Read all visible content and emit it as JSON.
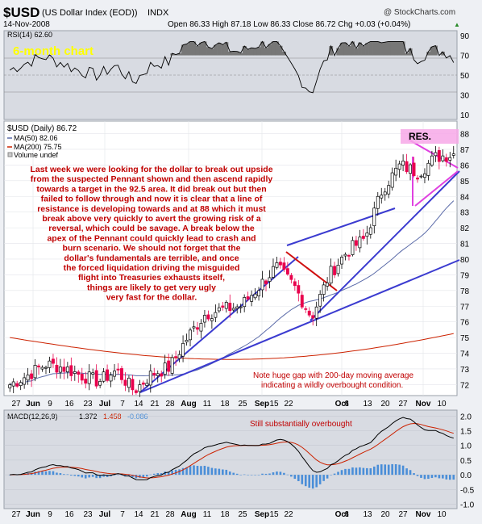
{
  "header": {
    "symbol": "$USD",
    "name": "(US Dollar Index (EOD))",
    "exchange": "INDX",
    "date": "14-Nov-2008",
    "copyright": "@ StockCharts.com",
    "ohlc": "Open 86.33  High 87.18  Low 86.33  Close 86.72  Chg +0.03 (+0.04%)",
    "ohlc_arrow": "▲"
  },
  "rsi_panel": {
    "label": "RSI(14) 62.60",
    "title": "6-month chart",
    "yticks": [
      "90",
      "70",
      "50",
      "30",
      "10"
    ]
  },
  "price_panel": {
    "legend": {
      "price": "$USD (Daily) 86.72",
      "ma50": "MA(50) 82.06",
      "ma200": "MA(200) 75.75",
      "volume": "Volume undef"
    },
    "commentary": [
      "Last week we were looking for the dollar to break out upside",
      "from the suspected Pennant shown and then ascend rapidly",
      "towards a target in the 92.5 area. It did break out but then",
      "failed to follow through and now it is clear that a line of",
      "resistance is developing towards and at 88 which it must",
      "break above very quickly to avert the growing risk of a",
      "reversal, which could be savage. A break below the",
      "apex of the Pennant could quickly lead to crash and",
      "burn scenario. We should not forget that the",
      "dollar's fundamentals are terrible, and once",
      "the forced liquidation driving the misguided",
      "flight into Treasuries exhausts itself,",
      "things are likely to get very ugly",
      "very fast for the dollar."
    ],
    "res_label": "RES.",
    "gap_note": [
      "Note huge gap with 200-day moving average",
      "indicating a wildly overbought condition."
    ],
    "yticks": [
      "88",
      "87",
      "86",
      "85",
      "84",
      "83",
      "82",
      "81",
      "80",
      "79",
      "78",
      "77",
      "76",
      "75",
      "74",
      "73",
      "72"
    ]
  },
  "macd_panel": {
    "label": "MACD(12,26,9)",
    "macd": "1.372",
    "signal": "1.458",
    "hist": "-0.086",
    "note": "Still substantially overbought",
    "yticks": [
      "2.0",
      "1.5",
      "1.0",
      "0.5",
      "0.0",
      "-0.5",
      "-1.0"
    ]
  },
  "x_axis": {
    "labels": [
      "27",
      "Jun",
      "9",
      "16",
      "23",
      "Jul",
      "7",
      "14",
      "21",
      "28",
      "Aug",
      "11",
      "18",
      "25",
      "Sep",
      "15",
      "22",
      "Oct",
      "6",
      "13",
      "20",
      "27",
      "Nov",
      "10"
    ]
  },
  "colors": {
    "up": "#000000",
    "down": "#e8004c",
    "ma50": "#5a6aa8",
    "ma200": "#cc2200",
    "trendline": "#3b3bd0",
    "pennant": "#e040e0",
    "flag": "#d01010",
    "text_red": "#c00000",
    "title_yellow": "#ffff00",
    "rsi_fill": "#777777",
    "hist": "#4a8ed8"
  },
  "chart_data": {
    "type": "candlestick",
    "title": "$USD (US Dollar Index (EOD)) INDX",
    "period": "6-month, daily, ending 14-Nov-2008",
    "last": {
      "open": 86.33,
      "high": 87.18,
      "low": 86.33,
      "close": 86.72,
      "change": 0.03,
      "change_pct": 0.04
    },
    "price_ylim": [
      71.3,
      88.8
    ],
    "price_series": [
      {
        "x": "2008-05-27",
        "close": 72.0
      },
      {
        "x": "2008-06-02",
        "close": 72.6
      },
      {
        "x": "2008-06-09",
        "close": 73.3
      },
      {
        "x": "2008-06-16",
        "close": 73.1
      },
      {
        "x": "2008-06-23",
        "close": 72.6
      },
      {
        "x": "2008-06-30",
        "close": 72.2
      },
      {
        "x": "2008-07-07",
        "close": 72.9
      },
      {
        "x": "2008-07-14",
        "close": 71.6
      },
      {
        "x": "2008-07-21",
        "close": 72.7
      },
      {
        "x": "2008-07-28",
        "close": 73.1
      },
      {
        "x": "2008-08-04",
        "close": 75.0
      },
      {
        "x": "2008-08-11",
        "close": 76.5
      },
      {
        "x": "2008-08-18",
        "close": 76.8
      },
      {
        "x": "2008-08-25",
        "close": 77.0
      },
      {
        "x": "2008-09-02",
        "close": 78.2
      },
      {
        "x": "2008-09-08",
        "close": 79.5
      },
      {
        "x": "2008-09-15",
        "close": 78.3
      },
      {
        "x": "2008-09-22",
        "close": 76.3
      },
      {
        "x": "2008-09-29",
        "close": 79.0
      },
      {
        "x": "2008-10-06",
        "close": 80.5
      },
      {
        "x": "2008-10-13",
        "close": 81.3
      },
      {
        "x": "2008-10-20",
        "close": 84.5
      },
      {
        "x": "2008-10-27",
        "close": 86.0
      },
      {
        "x": "2008-11-03",
        "close": 85.5
      },
      {
        "x": "2008-11-10",
        "close": 86.5
      },
      {
        "x": "2008-11-14",
        "close": 86.72
      }
    ],
    "ma50_last": 82.06,
    "ma200_last": 75.75,
    "rsi_last": 62.6,
    "rsi_ylim": [
      5,
      95
    ],
    "macd": {
      "params": "12,26,9",
      "macd": 1.372,
      "signal": 1.458,
      "histogram": -0.086,
      "ylim": [
        -1.15,
        2.2
      ]
    },
    "annotations": [
      "RES.",
      "6-month chart",
      "Still substantially overbought",
      "Note huge gap with 200-day moving average indicating a wildly overbought condition."
    ]
  }
}
